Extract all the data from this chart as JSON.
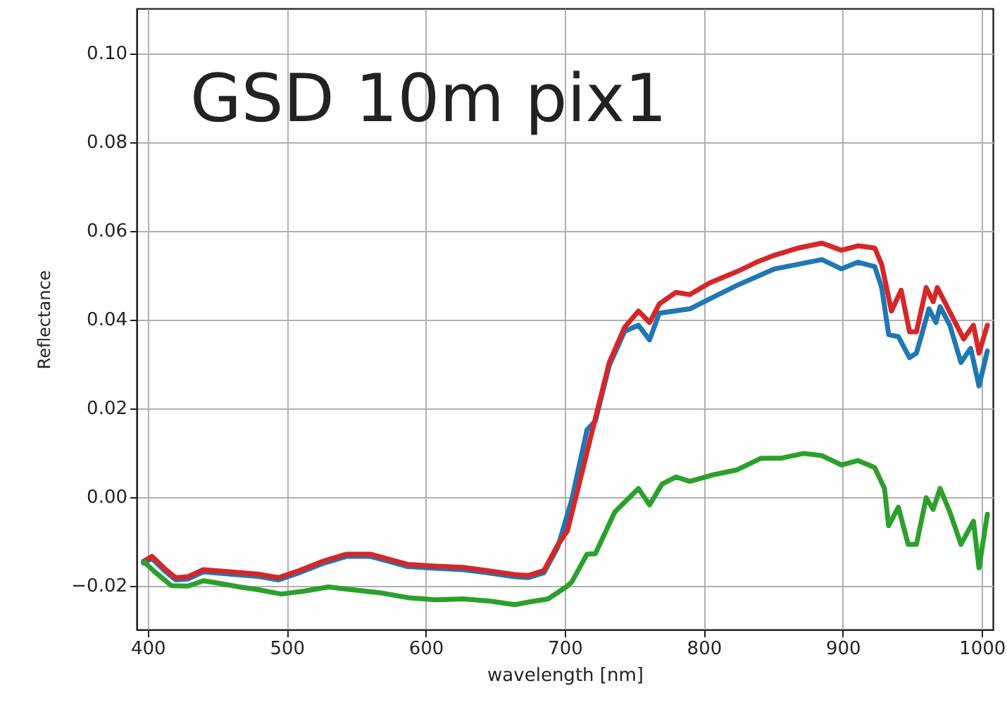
{
  "chart_data": {
    "type": "line",
    "title": "GSD 10m pix1",
    "xlabel": "wavelength [nm]",
    "ylabel": "Reflectance",
    "xlim": [
      392,
      1008
    ],
    "xticks": [
      400,
      500,
      600,
      700,
      800,
      900,
      1000
    ],
    "ylim": [
      -0.03,
      0.11
    ],
    "yticks": [
      {
        "value": -0.02,
        "label": "−0.02"
      },
      {
        "value": 0,
        "label": "0.00"
      },
      {
        "value": 0.02,
        "label": "0.02"
      },
      {
        "value": 0.04,
        "label": "0.04"
      },
      {
        "value": 0.06,
        "label": "0.06"
      },
      {
        "value": 0.08,
        "label": "0.08"
      },
      {
        "value": 0.1,
        "label": "0.10"
      }
    ],
    "grid": true,
    "line_style": "solid",
    "series": [
      {
        "color": "#1f77b4",
        "x": [
          397,
          403,
          412,
          420,
          429,
          440,
          459,
          479,
          494,
          509,
          526,
          543,
          560,
          573,
          587,
          607,
          627,
          644,
          664,
          674,
          685,
          695,
          705,
          716,
          722,
          732,
          743,
          753,
          761,
          768,
          790,
          824,
          851,
          885,
          899,
          911,
          923,
          928,
          933,
          940,
          948,
          953,
          962,
          967,
          970,
          977,
          985,
          992,
          998,
          1004
        ],
        "values": [
          -0.015,
          -0.014,
          -0.0167,
          -0.0188,
          -0.0186,
          -0.017,
          -0.0175,
          -0.018,
          -0.0188,
          -0.0172,
          -0.0151,
          -0.0135,
          -0.0135,
          -0.0146,
          -0.0158,
          -0.0162,
          -0.0165,
          -0.0172,
          -0.0181,
          -0.0183,
          -0.0172,
          -0.0114,
          -0.0008,
          0.015,
          0.017,
          0.0295,
          0.0372,
          0.0386,
          0.0353,
          0.0413,
          0.0423,
          0.0476,
          0.0513,
          0.0534,
          0.0513,
          0.0528,
          0.0518,
          0.0471,
          0.0365,
          0.036,
          0.0313,
          0.0323,
          0.0423,
          0.0392,
          0.0428,
          0.0386,
          0.0302,
          0.0334,
          0.0249,
          0.0328
        ]
      },
      {
        "color": "#d62728",
        "x": [
          397,
          403,
          412,
          420,
          429,
          440,
          459,
          479,
          494,
          509,
          526,
          543,
          560,
          573,
          587,
          607,
          627,
          644,
          664,
          674,
          685,
          695,
          702,
          712,
          722,
          732,
          743,
          753,
          761,
          768,
          780,
          790,
          804,
          824,
          838,
          851,
          868,
          885,
          899,
          911,
          923,
          928,
          935,
          942,
          948,
          953,
          960,
          965,
          968,
          975,
          987,
          994,
          998,
          1004
        ],
        "values": [
          -0.0146,
          -0.0135,
          -0.0162,
          -0.0183,
          -0.0181,
          -0.0165,
          -0.017,
          -0.0175,
          -0.0183,
          -0.0167,
          -0.0146,
          -0.013,
          -0.013,
          -0.0141,
          -0.0153,
          -0.0157,
          -0.016,
          -0.0167,
          -0.0176,
          -0.0178,
          -0.0167,
          -0.0109,
          -0.0077,
          0.0049,
          0.0176,
          0.0302,
          0.0381,
          0.0418,
          0.0392,
          0.0434,
          0.046,
          0.0455,
          0.0481,
          0.0507,
          0.0528,
          0.0544,
          0.056,
          0.0571,
          0.0555,
          0.0565,
          0.056,
          0.0523,
          0.0418,
          0.0465,
          0.0371,
          0.0371,
          0.0471,
          0.0439,
          0.0471,
          0.0428,
          0.0355,
          0.0386,
          0.0323,
          0.0386
        ]
      },
      {
        "color": "#2ca02c",
        "x": [
          397,
          404,
          417,
          429,
          440,
          452,
          466,
          479,
          496,
          513,
          530,
          546,
          567,
          587,
          607,
          627,
          647,
          664,
          674,
          688,
          701,
          705,
          716,
          722,
          736,
          753,
          761,
          770,
          780,
          790,
          807,
          824,
          841,
          855,
          872,
          885,
          899,
          911,
          923,
          930,
          933,
          940,
          947,
          953,
          960,
          965,
          970,
          977,
          985,
          994,
          998,
          1004
        ],
        "values": [
          -0.0146,
          -0.0167,
          -0.0201,
          -0.0202,
          -0.019,
          -0.0196,
          -0.0204,
          -0.021,
          -0.022,
          -0.0213,
          -0.0204,
          -0.021,
          -0.0217,
          -0.0228,
          -0.0233,
          -0.0231,
          -0.0236,
          -0.0244,
          -0.0238,
          -0.0231,
          -0.0204,
          -0.0193,
          -0.013,
          -0.0129,
          -0.0035,
          0.0018,
          -0.0019,
          0.0028,
          0.0044,
          0.0034,
          0.0049,
          0.006,
          0.0086,
          0.0086,
          0.0097,
          0.0092,
          0.0071,
          0.0081,
          0.0065,
          0.0018,
          -0.0066,
          -0.0024,
          -0.0108,
          -0.0108,
          -0.0003,
          -0.0029,
          0.0018,
          -0.0035,
          -0.0108,
          -0.0056,
          -0.0161,
          -0.004
        ]
      }
    ]
  }
}
